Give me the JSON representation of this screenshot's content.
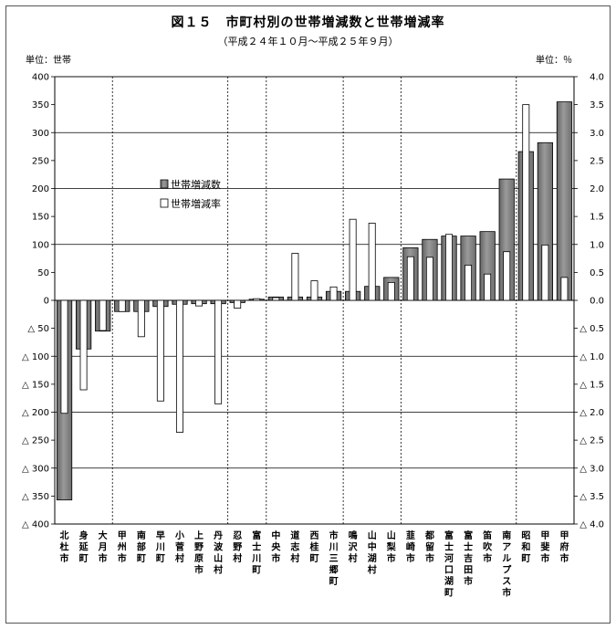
{
  "header": {
    "title": "図１５　市町村別の世帯増減数と世帯増減率",
    "subtitle": "（平成２４年１０月～平成２５年９月）",
    "unit_left": "単位：世帯",
    "unit_right": "単位：％"
  },
  "chart_data": {
    "type": "bar",
    "negative_prefix": "△",
    "categories": [
      "北杜市",
      "身延町",
      "大月市",
      "甲州市",
      "南部町",
      "早川町",
      "小菅村",
      "上野原市",
      "丹波山村",
      "忍野村",
      "富士川町",
      "中央市",
      "道志村",
      "西桂町",
      "市川三郷町",
      "鳴沢村",
      "山中湖村",
      "山梨市",
      "韮崎市",
      "都留市",
      "富士河口湖町",
      "富士吉田市",
      "笛吹市",
      "南アルプス市",
      "昭和町",
      "甲斐市",
      "甲府市"
    ],
    "series": [
      {
        "name": "世帯増減数",
        "axis": "left",
        "values": [
          -357,
          -87,
          -55,
          -20,
          -20,
          -11,
          -7,
          -6,
          -6,
          -4,
          2,
          6,
          6,
          6,
          16,
          16,
          25,
          41,
          94,
          109,
          115,
          115,
          123,
          217,
          266,
          282,
          355
        ]
      },
      {
        "name": "世帯増減率",
        "axis": "right",
        "values": [
          -2.02,
          -1.6,
          -0.54,
          -0.2,
          -0.65,
          -1.8,
          -2.36,
          -0.1,
          -1.85,
          -0.14,
          0.03,
          0.05,
          0.84,
          0.35,
          0.24,
          1.45,
          1.38,
          0.32,
          0.78,
          0.77,
          1.18,
          0.63,
          0.47,
          0.87,
          3.5,
          0.99,
          0.41
        ]
      }
    ],
    "y_left": {
      "min": -400,
      "max": 400,
      "step": 50
    },
    "y_right": {
      "min": -4.0,
      "max": 4.0,
      "step": 0.5
    },
    "group_separators_after": [
      2,
      8,
      10,
      14,
      17,
      23
    ],
    "legend_position": "upper-left"
  },
  "colors": {
    "bar_fill": "#7a7a7a",
    "bar_highlight": "#b5b5b5",
    "rate_fill": "#ffffff",
    "stroke": "#000000"
  }
}
